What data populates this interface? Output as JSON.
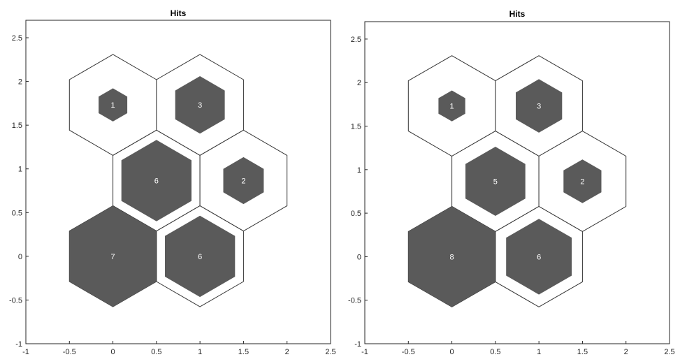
{
  "chart_data": [
    {
      "type": "hexbin",
      "title": "Hits",
      "xlim": [
        -1,
        2.5
      ],
      "ylim": [
        -1,
        2.7
      ],
      "xticks": [
        -1,
        -0.5,
        0,
        0.5,
        1,
        1.5,
        2,
        2.5
      ],
      "yticks": [
        -1,
        -0.5,
        0,
        0.5,
        1,
        1.5,
        2,
        2.5
      ],
      "grid": false,
      "hit_color": "#5a5a5a",
      "max_hits": 7,
      "neurons": [
        {
          "x": 0,
          "y": 1.732,
          "hits": 1
        },
        {
          "x": 1,
          "y": 1.732,
          "hits": 3
        },
        {
          "x": 0.5,
          "y": 0.866,
          "hits": 6
        },
        {
          "x": 1.5,
          "y": 0.866,
          "hits": 2
        },
        {
          "x": 0,
          "y": 0,
          "hits": 7
        },
        {
          "x": 1,
          "y": 0,
          "hits": 6
        }
      ]
    },
    {
      "type": "hexbin",
      "title": "Hits",
      "xlim": [
        -1,
        2.5
      ],
      "ylim": [
        -1,
        2.7
      ],
      "xticks": [
        -1,
        -0.5,
        0,
        0.5,
        1,
        1.5,
        2,
        2.5
      ],
      "yticks": [
        -1,
        -0.5,
        0,
        0.5,
        1,
        1.5,
        2,
        2.5
      ],
      "grid": false,
      "hit_color": "#5a5a5a",
      "max_hits": 8,
      "neurons": [
        {
          "x": 0,
          "y": 1.732,
          "hits": 1
        },
        {
          "x": 1,
          "y": 1.732,
          "hits": 3
        },
        {
          "x": 0.5,
          "y": 0.866,
          "hits": 5
        },
        {
          "x": 1.5,
          "y": 0.866,
          "hits": 2
        },
        {
          "x": 0,
          "y": 0,
          "hits": 8
        },
        {
          "x": 1,
          "y": 0,
          "hits": 6
        }
      ]
    }
  ]
}
